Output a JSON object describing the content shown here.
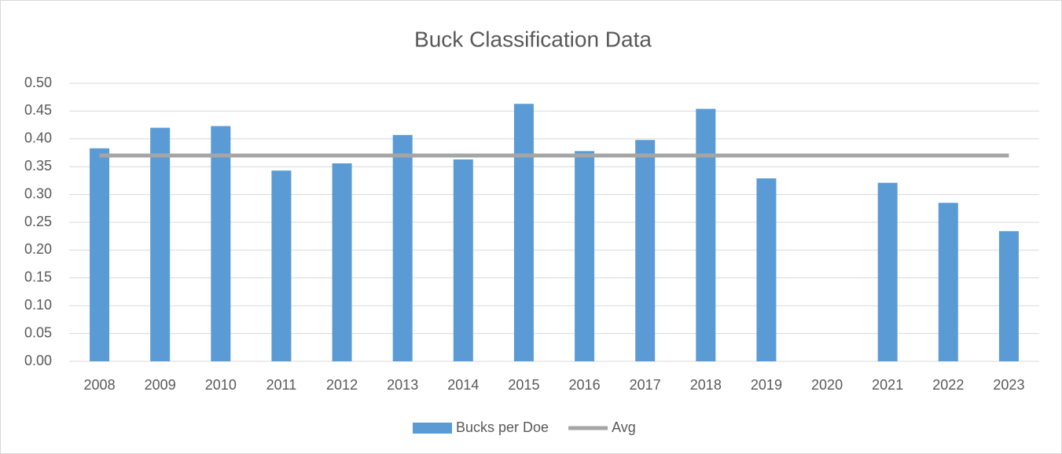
{
  "chart_data": {
    "type": "bar",
    "title": "Buck Classification Data",
    "categories": [
      "2008",
      "2009",
      "2010",
      "2011",
      "2012",
      "2013",
      "2014",
      "2015",
      "2016",
      "2017",
      "2018",
      "2019",
      "2020",
      "2021",
      "2022",
      "2023"
    ],
    "series": [
      {
        "name": "Bucks per Doe",
        "type": "bar",
        "color": "#5b9bd5",
        "values": [
          0.383,
          0.42,
          0.423,
          0.343,
          0.356,
          0.407,
          0.363,
          0.463,
          0.378,
          0.398,
          0.454,
          0.329,
          null,
          0.321,
          0.285,
          0.234
        ]
      },
      {
        "name": "Avg",
        "type": "line",
        "color": "#a5a5a5",
        "values": [
          0.37,
          0.37,
          0.37,
          0.37,
          0.37,
          0.37,
          0.37,
          0.37,
          0.37,
          0.37,
          0.37,
          0.37,
          0.37,
          0.37,
          0.37,
          0.37
        ]
      }
    ],
    "ylim": [
      0,
      0.5
    ],
    "yticks": [
      {
        "value": 0,
        "label": "0.00"
      },
      {
        "value": 0.05,
        "label": "0.05"
      },
      {
        "value": 0.1,
        "label": "0.10"
      },
      {
        "value": 0.15,
        "label": "0.15"
      },
      {
        "value": 0.2,
        "label": "0.20"
      },
      {
        "value": 0.25,
        "label": "0.25"
      },
      {
        "value": 0.3,
        "label": "0.30"
      },
      {
        "value": 0.35,
        "label": "0.35"
      },
      {
        "value": 0.4,
        "label": "0.40"
      },
      {
        "value": 0.45,
        "label": "0.45"
      },
      {
        "value": 0.5,
        "label": "0.50"
      }
    ],
    "grid": true,
    "legend": "bottom"
  }
}
